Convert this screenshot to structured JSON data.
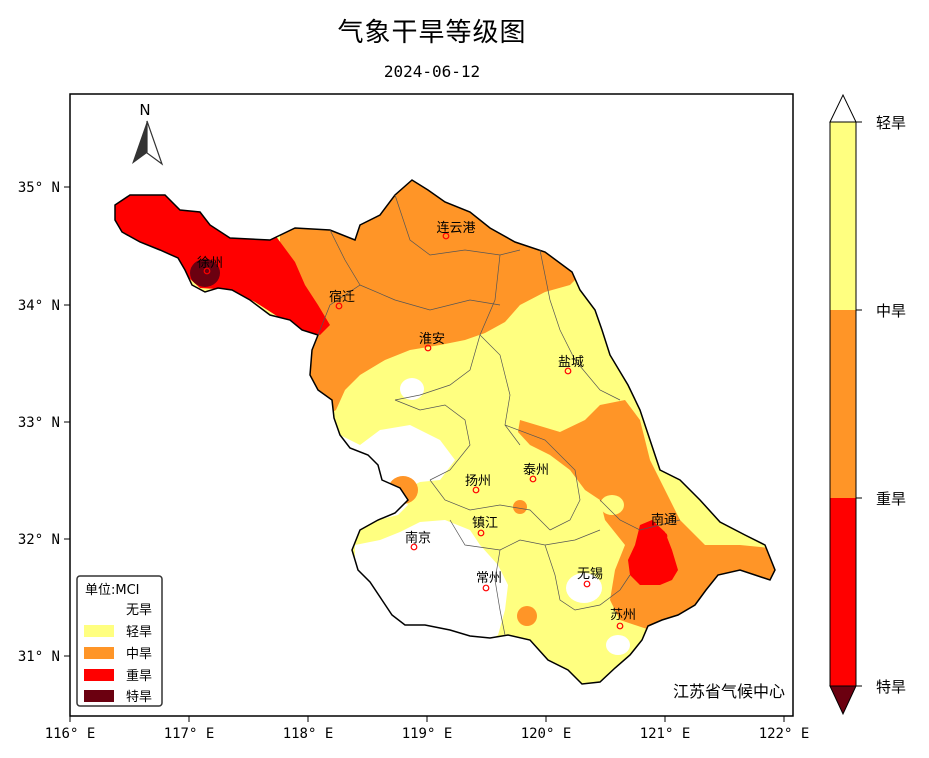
{
  "title": "气象干旱等级图",
  "subtitle": "2024-06-12",
  "credit": "江苏省气候中心",
  "north_label": "N",
  "axes": {
    "x_ticks": [
      "116° E",
      "117° E",
      "118° E",
      "119° E",
      "120° E",
      "121° E",
      "122° E"
    ],
    "y_ticks": [
      "35° N",
      "34° N",
      "33° N",
      "32° N",
      "31° N"
    ]
  },
  "cities": [
    "连云港",
    "徐州",
    "宿迁",
    "淮安",
    "盐城",
    "扬州",
    "泰州",
    "镇江",
    "南京",
    "南通",
    "常州",
    "无锡",
    "苏州"
  ],
  "legend": {
    "title": "单位:MCI",
    "items": [
      {
        "label": "无旱",
        "color": "#ffffff"
      },
      {
        "label": "轻旱",
        "color": "#ffff80"
      },
      {
        "label": "中旱",
        "color": "#ff9527"
      },
      {
        "label": "重旱",
        "color": "#ff0000"
      },
      {
        "label": "特旱",
        "color": "#6b0010"
      }
    ]
  },
  "colorbar": {
    "labels": [
      "轻旱",
      "中旱",
      "重旱",
      "特旱"
    ],
    "colors": {
      "top": "#ffff80",
      "light": "#ffff80",
      "moderate": "#ff9527",
      "severe": "#ff0000",
      "extreme": "#6b0010",
      "tip": "#ffffff"
    }
  },
  "colors": {
    "frame": "#000000",
    "city_marker": "#ff0000",
    "border": "#000000"
  }
}
